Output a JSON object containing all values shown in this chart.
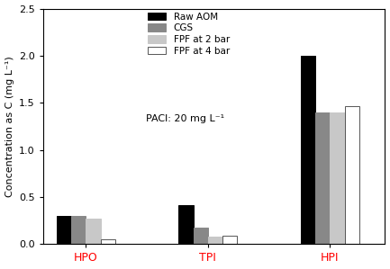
{
  "categories": [
    "HPO",
    "TPI",
    "HPI"
  ],
  "series": {
    "Raw AOM": [
      0.3,
      0.41,
      2.0
    ],
    "CGS": [
      0.3,
      0.18,
      1.4
    ],
    "FPF at 2 bar": [
      0.27,
      0.08,
      1.4
    ],
    "FPF at 4 bar": [
      0.05,
      0.09,
      1.46
    ]
  },
  "colors": {
    "Raw AOM": "#000000",
    "CGS": "#888888",
    "FPF at 2 bar": "#c8c8c8",
    "FPF at 4 bar": "#ffffff"
  },
  "edgecolors": {
    "Raw AOM": "#000000",
    "CGS": "#888888",
    "FPF at 2 bar": "#c8c8c8",
    "FPF at 4 bar": "#555555"
  },
  "ylabel": "Concentration as C (mg L⁻¹)",
  "ylim": [
    0,
    2.5
  ],
  "yticks": [
    0.0,
    0.5,
    1.0,
    1.5,
    2.0,
    2.5
  ],
  "annotation": "PACl: 20 mg L⁻¹",
  "legend_order": [
    "Raw AOM",
    "CGS",
    "FPF at 2 bar",
    "FPF at 4 bar"
  ],
  "bar_width": 0.12,
  "xlabel_color": "#ff0000",
  "figsize": [
    4.33,
    2.99
  ],
  "dpi": 100
}
